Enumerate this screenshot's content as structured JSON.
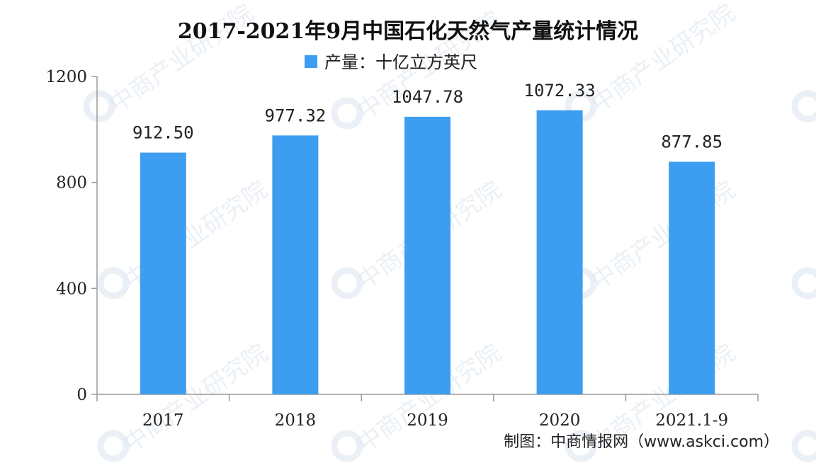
{
  "chart_data": {
    "type": "bar",
    "title": "2017-2021年9月中国石化天然气产量统计情况",
    "categories": [
      "2017",
      "2018",
      "2019",
      "2020",
      "2021.1-9"
    ],
    "series": [
      {
        "name": "产量：十亿立方英尺",
        "values": [
          912.5,
          977.32,
          1047.78,
          1072.33,
          877.85
        ],
        "labels": [
          "912.50",
          "977.32",
          "1047.78",
          "1072.33",
          "877.85"
        ],
        "color": "#3d9df0"
      }
    ],
    "ylim": [
      0,
      1200
    ],
    "yticks": [
      0,
      400,
      800,
      1200
    ],
    "grid": false,
    "legend_position": "top-center"
  },
  "source_note": "制图：中商情报网（www.askci.com）",
  "watermark": {
    "text": "中商产业研究院"
  },
  "colors": {
    "bar": "#3d9df0",
    "axis": "#9a9a9a",
    "text": "#222222"
  }
}
